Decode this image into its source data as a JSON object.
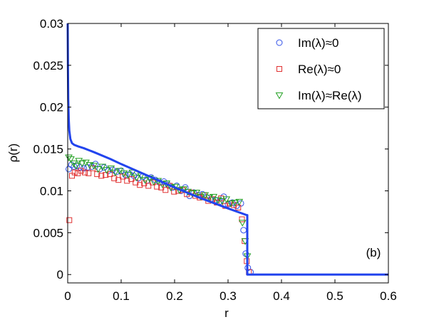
{
  "chart_data": {
    "type": "scatter",
    "panel_label": "(b)",
    "xlabel": "r",
    "ylabel": "ρ(r)",
    "xlim": [
      0,
      0.6
    ],
    "ylim": [
      -0.001,
      0.03
    ],
    "xticks": [
      0,
      0.1,
      0.2,
      0.3,
      0.4,
      0.5,
      0.6
    ],
    "xtick_labels": [
      "0",
      "0.1",
      "0.2",
      "0.3",
      "0.4",
      "0.5",
      "0.6"
    ],
    "yticks": [
      0,
      0.005,
      0.01,
      0.015,
      0.02,
      0.025,
      0.03
    ],
    "ytick_labels": [
      "0",
      "0.005",
      "0.01",
      "0.015",
      "0.02",
      "0.025",
      "0.03"
    ],
    "legend_position": "top-right",
    "grid": false,
    "series": [
      {
        "name": "Im(λ)≈0",
        "marker": "circle",
        "color": "#3050e8",
        "x": [
          0.002,
          0.007,
          0.012,
          0.017,
          0.023,
          0.03,
          0.037,
          0.045,
          0.052,
          0.06,
          0.068,
          0.076,
          0.084,
          0.092,
          0.1,
          0.108,
          0.116,
          0.124,
          0.132,
          0.14,
          0.148,
          0.156,
          0.164,
          0.172,
          0.18,
          0.188,
          0.196,
          0.204,
          0.212,
          0.22,
          0.228,
          0.236,
          0.244,
          0.252,
          0.26,
          0.268,
          0.276,
          0.284,
          0.292,
          0.3,
          0.308,
          0.316,
          0.324,
          0.329,
          0.333,
          0.337,
          0.342
        ],
        "y": [
          0.0126,
          0.0131,
          0.0129,
          0.013,
          0.0128,
          0.0127,
          0.0128,
          0.0129,
          0.0132,
          0.0126,
          0.0128,
          0.0124,
          0.0125,
          0.0123,
          0.0124,
          0.0119,
          0.012,
          0.0118,
          0.0115,
          0.0117,
          0.0112,
          0.0116,
          0.0113,
          0.011,
          0.0111,
          0.0107,
          0.0104,
          0.0106,
          0.01,
          0.0104,
          0.0094,
          0.0098,
          0.0095,
          0.0096,
          0.0092,
          0.009,
          0.0089,
          0.0087,
          0.0093,
          0.0084,
          0.0086,
          0.0082,
          0.0085,
          0.0053,
          0.0025,
          0.0008,
          0.0003
        ]
      },
      {
        "name": "Re(λ)≈0",
        "marker": "square",
        "color": "#e03030",
        "x": [
          0.003,
          0.008,
          0.013,
          0.019,
          0.025,
          0.032,
          0.039,
          0.047,
          0.055,
          0.063,
          0.071,
          0.079,
          0.087,
          0.095,
          0.103,
          0.111,
          0.119,
          0.127,
          0.135,
          0.143,
          0.151,
          0.159,
          0.167,
          0.175,
          0.183,
          0.191,
          0.199,
          0.207,
          0.215,
          0.223,
          0.231,
          0.239,
          0.247,
          0.255,
          0.263,
          0.271,
          0.279,
          0.287,
          0.295,
          0.303,
          0.311,
          0.319,
          0.326,
          0.331,
          0.335,
          0.339
        ],
        "y": [
          0.0065,
          0.0118,
          0.0122,
          0.0121,
          0.0124,
          0.0122,
          0.0121,
          0.0127,
          0.012,
          0.0118,
          0.0119,
          0.012,
          0.0115,
          0.0113,
          0.0117,
          0.0112,
          0.0114,
          0.011,
          0.0107,
          0.0109,
          0.0106,
          0.011,
          0.0105,
          0.0104,
          0.0101,
          0.0106,
          0.0099,
          0.01,
          0.0101,
          0.0096,
          0.0098,
          0.0094,
          0.0092,
          0.0095,
          0.0088,
          0.009,
          0.0086,
          0.0091,
          0.0082,
          0.0085,
          0.0083,
          0.008,
          0.0066,
          0.004,
          0.0016,
          0.0003
        ]
      },
      {
        "name": "Im(λ)≈Re(λ)",
        "marker": "triangle-down",
        "color": "#22a022",
        "x": [
          0.002,
          0.006,
          0.011,
          0.016,
          0.021,
          0.027,
          0.034,
          0.041,
          0.049,
          0.057,
          0.065,
          0.073,
          0.081,
          0.089,
          0.097,
          0.105,
          0.113,
          0.121,
          0.129,
          0.137,
          0.145,
          0.153,
          0.161,
          0.169,
          0.177,
          0.185,
          0.193,
          0.201,
          0.209,
          0.217,
          0.225,
          0.233,
          0.241,
          0.249,
          0.257,
          0.265,
          0.273,
          0.281,
          0.289,
          0.297,
          0.305,
          0.313,
          0.321,
          0.327,
          0.332,
          0.336
        ],
        "y": [
          0.014,
          0.0138,
          0.0133,
          0.013,
          0.0136,
          0.0133,
          0.0134,
          0.0131,
          0.013,
          0.0126,
          0.0129,
          0.0125,
          0.0127,
          0.0122,
          0.0124,
          0.0121,
          0.0119,
          0.0122,
          0.0116,
          0.0118,
          0.0113,
          0.0115,
          0.0111,
          0.0112,
          0.0108,
          0.0109,
          0.0104,
          0.0105,
          0.0101,
          0.0102,
          0.0099,
          0.0097,
          0.0098,
          0.0093,
          0.0095,
          0.0092,
          0.0093,
          0.0089,
          0.0088,
          0.009,
          0.0085,
          0.0086,
          0.0087,
          0.0062,
          0.004,
          0.0022
        ]
      },
      {
        "name": "",
        "type": "line",
        "color": "#2244ee",
        "x": [
          0.0,
          0.0005,
          0.001,
          0.002,
          0.003,
          0.005,
          0.008,
          0.012,
          0.02,
          0.03,
          0.05,
          0.08,
          0.1,
          0.15,
          0.2,
          0.25,
          0.3,
          0.335,
          0.336,
          0.336,
          0.6
        ],
        "y": [
          0.03,
          0.0245,
          0.021,
          0.0185,
          0.0172,
          0.0162,
          0.0157,
          0.0155,
          0.0153,
          0.0151,
          0.0146,
          0.0138,
          0.0132,
          0.0118,
          0.0104,
          0.0091,
          0.0079,
          0.0071,
          0.0071,
          0.0,
          0.0
        ]
      }
    ]
  }
}
